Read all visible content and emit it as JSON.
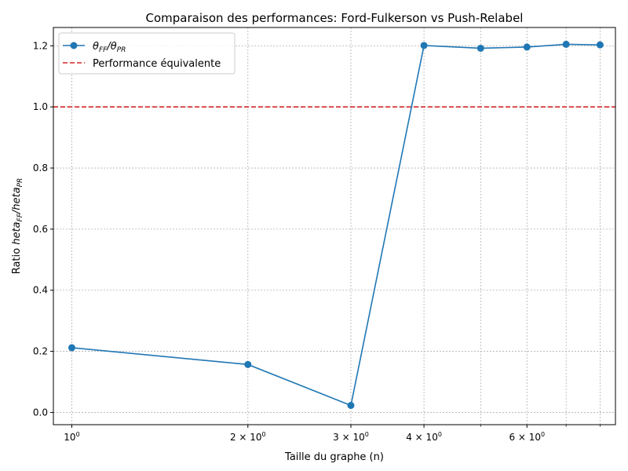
{
  "chart_data": {
    "type": "line",
    "title": "Comparaison des performances: Ford-Fulkerson vs Push-Relabel",
    "xlabel": "Taille du graphe (n)",
    "ylabel": {
      "prefix": "Ratio ",
      "num": "heta",
      "num_sub": "FF",
      "slash": "/",
      "den": "heta",
      "den_sub": "PR"
    },
    "x_scale": "log",
    "xlim": [
      0.93,
      8.5
    ],
    "ylim": [
      -0.04,
      1.26
    ],
    "grid": true,
    "legend_position": "top-left",
    "x_tick_labels": [
      {
        "value": 1,
        "base": "10",
        "exp": "0",
        "mant": ""
      },
      {
        "value": 2,
        "base": "10",
        "exp": "0",
        "mant": "2 × "
      },
      {
        "value": 3,
        "base": "10",
        "exp": "0",
        "mant": "3 × "
      },
      {
        "value": 4,
        "base": "10",
        "exp": "0",
        "mant": "4 × "
      },
      {
        "value": 6,
        "base": "10",
        "exp": "0",
        "mant": "6 × "
      }
    ],
    "x_minor_gridlines": [
      5,
      7,
      8
    ],
    "y_ticks": [
      "0.0",
      "0.2",
      "0.4",
      "0.6",
      "0.8",
      "1.0",
      "1.2"
    ],
    "series": [
      {
        "name": {
          "sym": "θ",
          "sub": "FF",
          "slash": "/",
          "sym2": "θ",
          "sub2": "PR"
        },
        "color": "#1f77b4",
        "marker": "circle",
        "x": [
          1,
          2,
          3,
          4,
          5,
          6,
          7,
          8
        ],
        "y": [
          0.212,
          0.157,
          0.023,
          1.201,
          1.192,
          1.196,
          1.205,
          1.203
        ]
      }
    ],
    "reference_line": {
      "name": "Performance équivalente",
      "y": 1.0,
      "color": "#d62728",
      "style": "dashed"
    }
  }
}
